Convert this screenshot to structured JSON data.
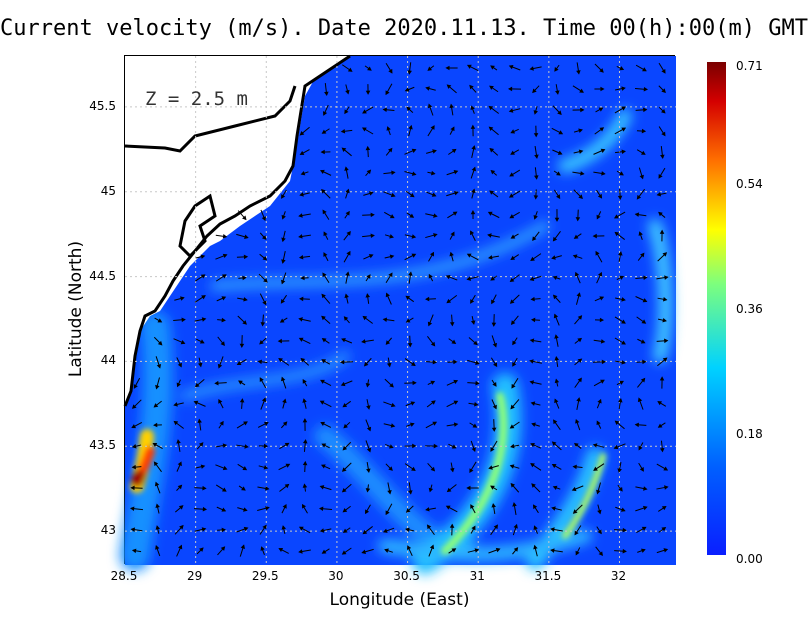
{
  "title": "Current velocity (m/s). Date 2020.11.13. Time 00(h):00(m) GMT",
  "depth_label": "Z = 2.5 m",
  "xlabel": "Longitude (East)",
  "ylabel": "Latitude (North)",
  "x_ticks": [
    "28.5",
    "29",
    "29.5",
    "30",
    "30.5",
    "31",
    "31.5",
    "32"
  ],
  "y_ticks": [
    "45.5",
    "45",
    "44.5",
    "44",
    "43.5",
    "43"
  ],
  "colorbar_ticks": [
    "0.71",
    "0.54",
    "0.36",
    "0.18",
    "0.00"
  ],
  "chart_data": {
    "type": "heatmap",
    "title": "Current velocity (m/s). Date 2020.11.13. Time 00(h):00(m) GMT",
    "xlabel": "Longitude (East)",
    "ylabel": "Latitude (North)",
    "xlim": [
      28.5,
      32.4
    ],
    "ylim": [
      42.8,
      45.8
    ],
    "colorbar": {
      "min": 0.0,
      "max": 0.71,
      "ticks": [
        0.0,
        0.18,
        0.36,
        0.54,
        0.71
      ]
    },
    "grid": true,
    "colors": {
      "land": "#ffffff",
      "low": "#0a3cff",
      "high": "#7a0000",
      "coast": "#000000"
    }
  }
}
